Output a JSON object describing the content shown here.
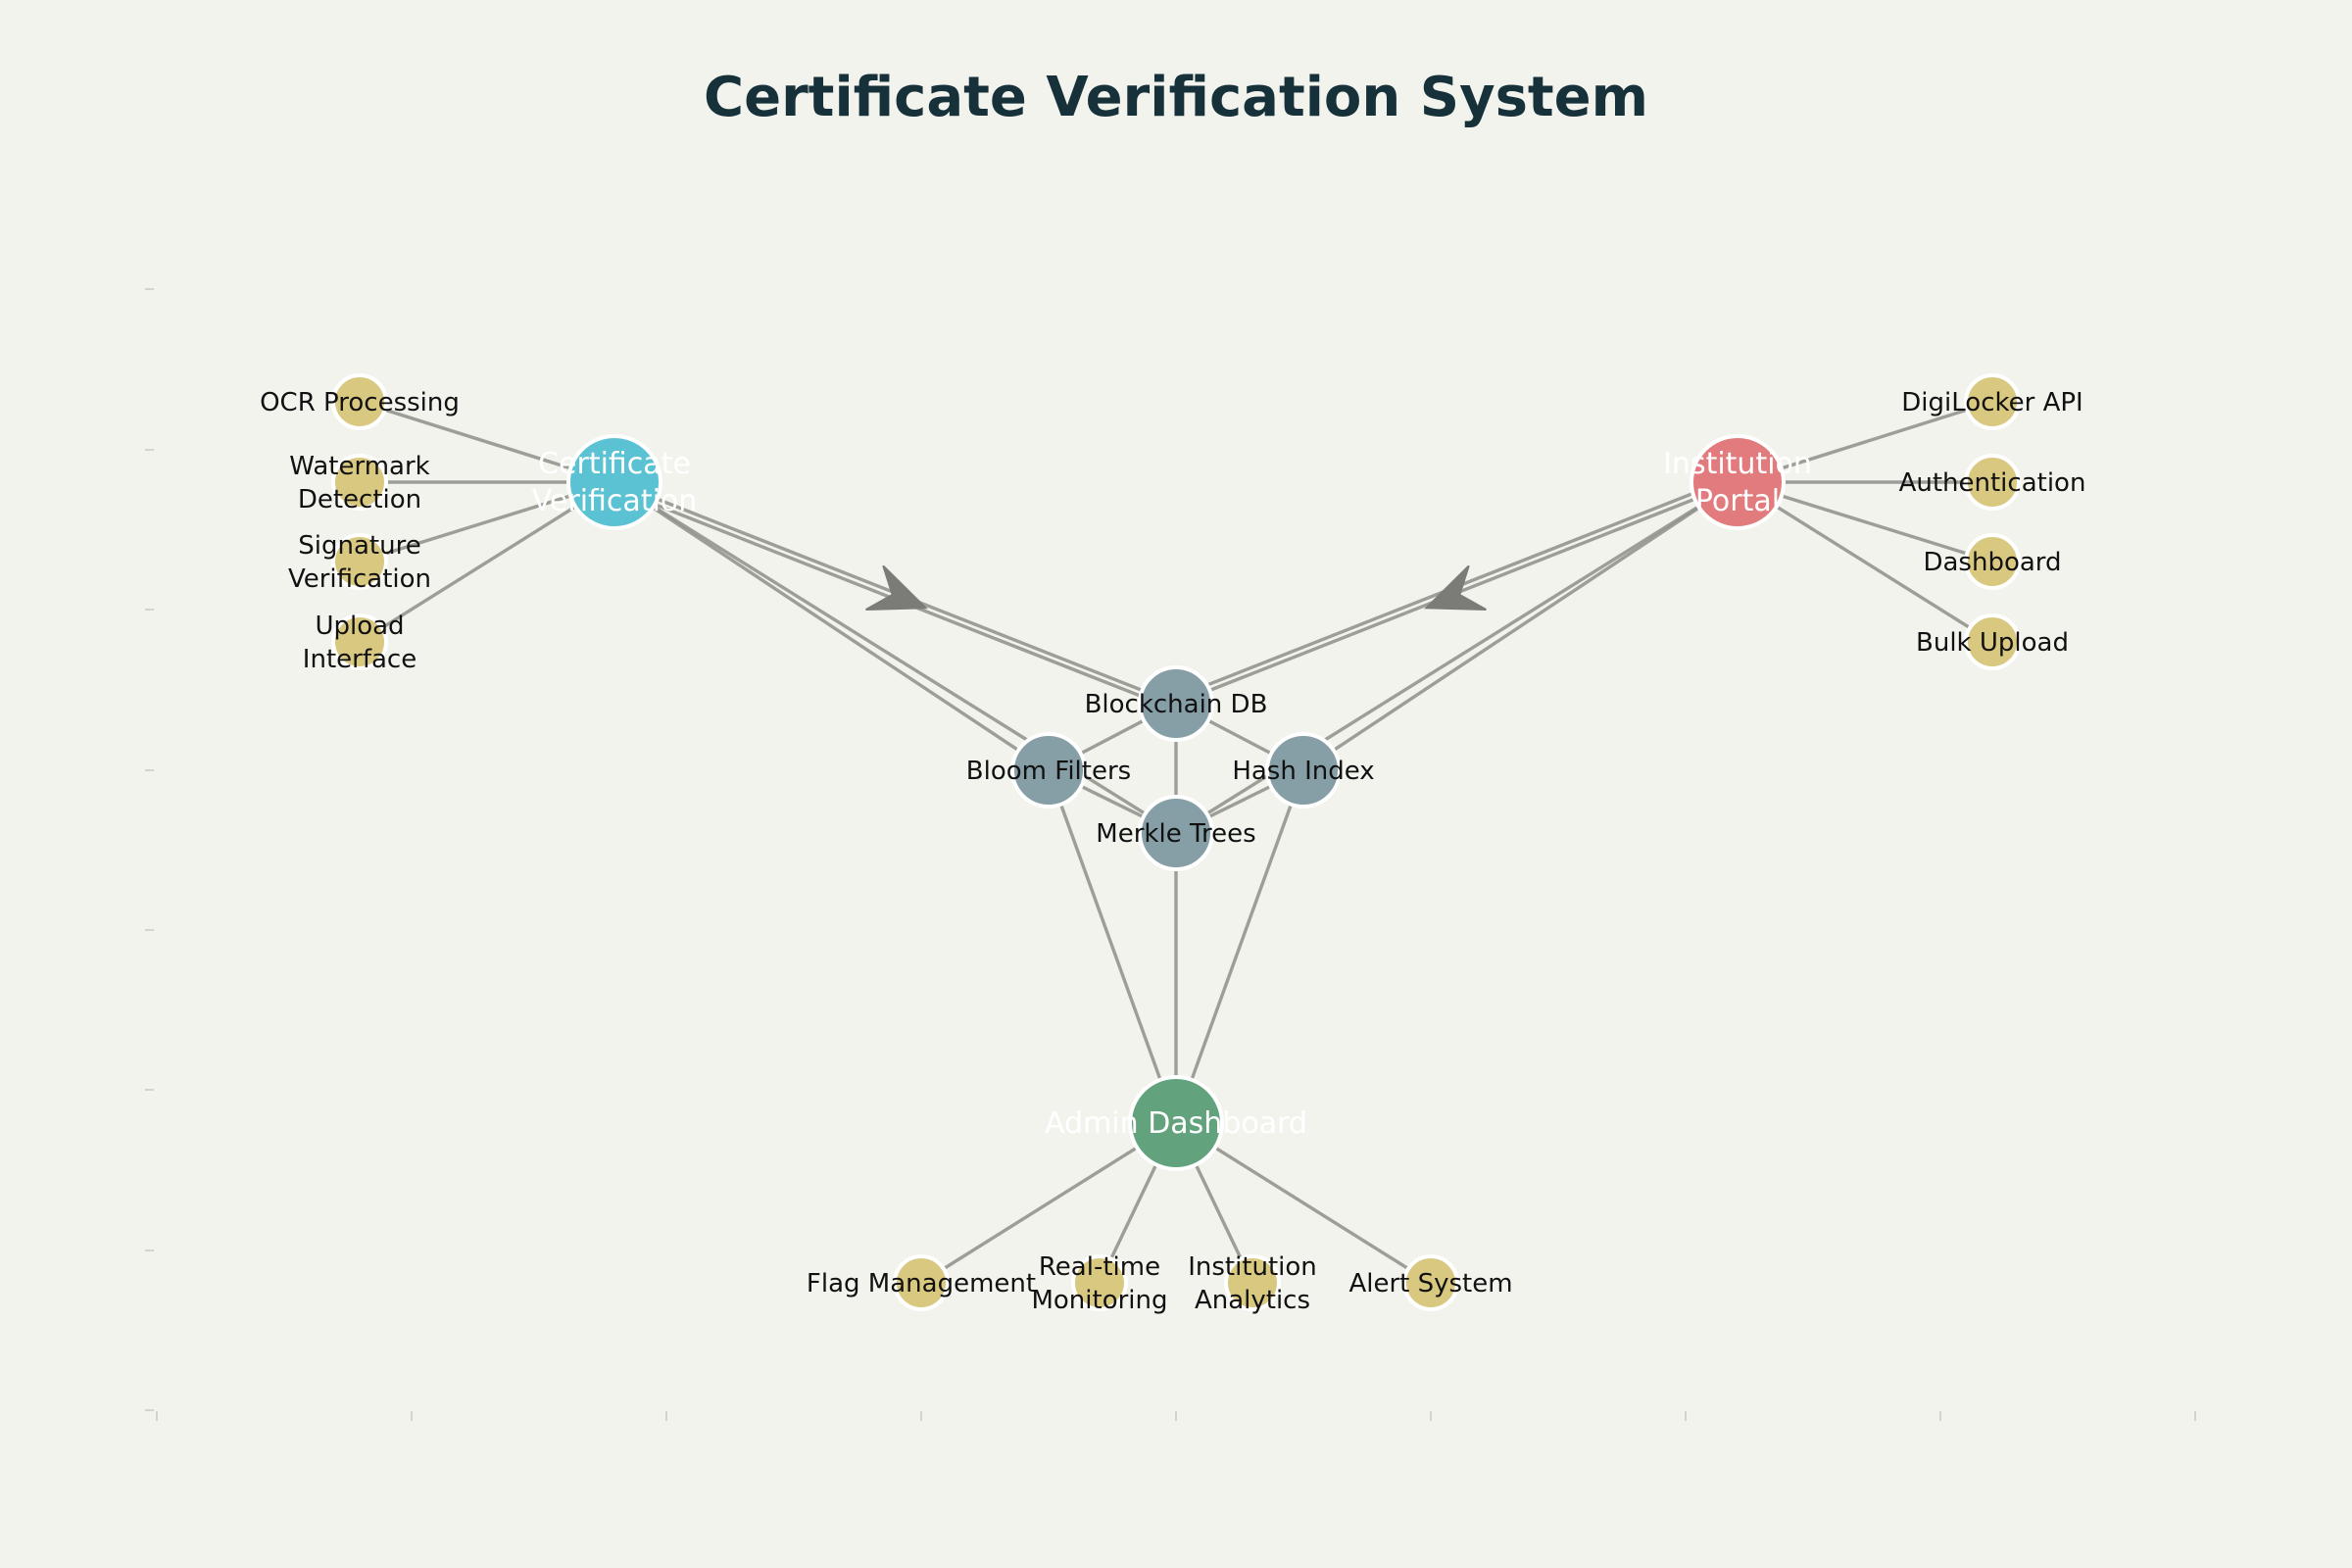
{
  "title": "Certificate Verification System",
  "colors": {
    "background": "#f3f3ee",
    "verification": "#5bc2d4",
    "institution": "#e27b7d",
    "admin": "#62a37d",
    "storage": "#869ea6",
    "feature": "#d9c880",
    "edge": "#8e8e8a",
    "arrow": "#7b7b78",
    "title": "#17313a"
  },
  "nodes": {
    "verification": {
      "label": [
        "Certificate",
        "Verification"
      ]
    },
    "institution": {
      "label": [
        "Institution",
        "Portal"
      ]
    },
    "admin": {
      "label": [
        "Admin Dashboard"
      ]
    },
    "blockchain": {
      "label": [
        "Blockchain DB"
      ]
    },
    "bloom": {
      "label": [
        "Bloom Filters"
      ]
    },
    "hash": {
      "label": [
        "Hash Index"
      ]
    },
    "merkle": {
      "label": [
        "Merkle Trees"
      ]
    },
    "ocr": {
      "label": [
        "OCR Processing"
      ]
    },
    "watermark": {
      "label": [
        "Watermark",
        "Detection"
      ]
    },
    "signature": {
      "label": [
        "Signature",
        "Verification"
      ]
    },
    "upload": {
      "label": [
        "Upload",
        "Interface"
      ]
    },
    "digilocker": {
      "label": [
        "DigiLocker API"
      ]
    },
    "authentication": {
      "label": [
        "Authentication"
      ]
    },
    "dashboard": {
      "label": [
        "Dashboard"
      ]
    },
    "bulk": {
      "label": [
        "Bulk Upload"
      ]
    },
    "flag": {
      "label": [
        "Flag Management"
      ]
    },
    "realtime": {
      "label": [
        "Real-time",
        "Monitoring"
      ]
    },
    "analytics": {
      "label": [
        "Institution",
        "Analytics"
      ]
    },
    "alert": {
      "label": [
        "Alert System"
      ]
    }
  },
  "edges": [
    [
      "verification",
      "ocr"
    ],
    [
      "verification",
      "watermark"
    ],
    [
      "verification",
      "signature"
    ],
    [
      "verification",
      "upload"
    ],
    [
      "institution",
      "digilocker"
    ],
    [
      "institution",
      "authentication"
    ],
    [
      "institution",
      "dashboard"
    ],
    [
      "institution",
      "bulk"
    ],
    [
      "admin",
      "flag"
    ],
    [
      "admin",
      "realtime"
    ],
    [
      "admin",
      "analytics"
    ],
    [
      "admin",
      "alert"
    ],
    [
      "blockchain",
      "bloom"
    ],
    [
      "blockchain",
      "hash"
    ],
    [
      "blockchain",
      "merkle"
    ],
    [
      "bloom",
      "merkle"
    ],
    [
      "hash",
      "merkle"
    ],
    [
      "verification",
      "blockchain"
    ],
    [
      "verification",
      "bloom"
    ],
    [
      "verification",
      "merkle"
    ],
    [
      "institution",
      "blockchain"
    ],
    [
      "institution",
      "hash"
    ],
    [
      "institution",
      "merkle"
    ],
    [
      "admin",
      "bloom"
    ],
    [
      "admin",
      "hash"
    ],
    [
      "admin",
      "merkle"
    ]
  ],
  "arrows": [
    [
      "verification",
      "blockchain"
    ],
    [
      "institution",
      "blockchain"
    ]
  ]
}
